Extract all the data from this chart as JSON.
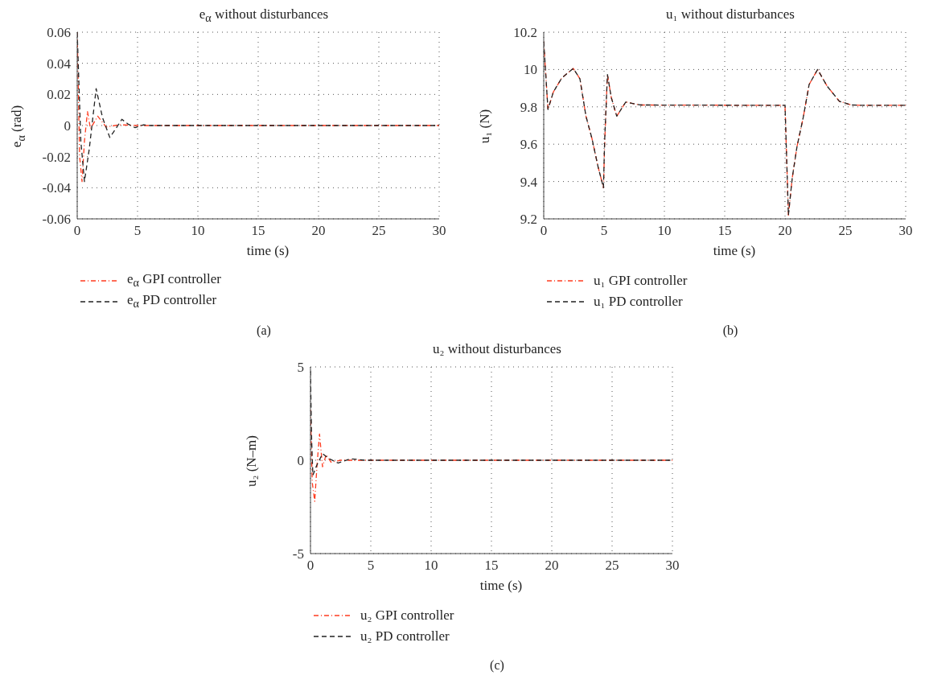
{
  "chart_data": [
    {
      "type": "line",
      "title": "e$_{α}$ without disturbances",
      "xlabel": "time (s)",
      "ylabel": "e$_{α}$ (rad)",
      "xlim": [
        0,
        30
      ],
      "xticks": [
        0,
        5,
        10,
        15,
        20,
        25,
        30
      ],
      "ylim": [
        -0.06,
        0.06
      ],
      "yticks": [
        -0.06,
        -0.04,
        -0.02,
        0,
        0.02,
        0.04,
        0.06
      ],
      "grid": true,
      "legend": "bottom",
      "annotations": [
        "(a)"
      ],
      "series": [
        {
          "name": "e$_{α}$ GPI controller",
          "color": "#ff3b1f",
          "line_style": "dashdot",
          "x": [
            0,
            0.2,
            0.4,
            0.6,
            0.85,
            1.1,
            1.7,
            2.4,
            3.5,
            5,
            30
          ],
          "values": [
            0.06,
            -0.02,
            -0.036,
            -0.01,
            0.009,
            -0.002,
            0.006,
            -0.001,
            0.0005,
            0,
            0
          ]
        },
        {
          "name": "e$_{α}$ PD controller",
          "color": "#222222",
          "line_style": "dashed",
          "x": [
            0,
            0.3,
            0.6,
            1.0,
            1.57,
            2.1,
            2.7,
            3.2,
            3.7,
            4.2,
            4.8,
            5.5,
            6,
            30
          ],
          "values": [
            0.06,
            -0.01,
            -0.036,
            -0.015,
            0.0237,
            0.005,
            -0.0077,
            -0.002,
            0.004,
            0.001,
            -0.0014,
            0.0005,
            0,
            0
          ]
        }
      ]
    },
    {
      "type": "line",
      "title": "u₁ without disturbances",
      "xlabel": "time (s)",
      "ylabel": "u₁ (N)",
      "xlim": [
        0,
        30
      ],
      "xticks": [
        0,
        5,
        10,
        15,
        20,
        25,
        30
      ],
      "ylim": [
        9.2,
        10.2
      ],
      "yticks": [
        9.2,
        9.4,
        9.6,
        9.8,
        10,
        10.2
      ],
      "grid": true,
      "legend": "bottom",
      "annotations": [
        "(b)"
      ],
      "series": [
        {
          "name": "u₁ GPI controller",
          "color": "#ff3b1f",
          "line_style": "dashdot",
          "x": [
            0,
            0.35,
            0.8,
            1.5,
            2.45,
            3.0,
            3.5,
            4.0,
            4.5,
            4.95,
            5.05,
            5.28,
            5.6,
            6.05,
            6.8,
            8,
            20,
            20.28,
            20.6,
            21,
            21.5,
            22,
            22.7,
            23.5,
            24.5,
            25.5,
            26.5,
            30
          ],
          "values": [
            10.15,
            9.786,
            9.88,
            9.955,
            10.006,
            9.95,
            9.75,
            9.63,
            9.48,
            9.367,
            9.6,
            9.973,
            9.85,
            9.75,
            9.826,
            9.81,
            9.808,
            9.22,
            9.42,
            9.59,
            9.74,
            9.92,
            10.0,
            9.91,
            9.83,
            9.81,
            9.808,
            9.808
          ]
        },
        {
          "name": "u₁ PD controller",
          "color": "#222222",
          "line_style": "dashed",
          "x": [
            0,
            0.35,
            0.8,
            1.5,
            2.45,
            3.0,
            3.5,
            4.0,
            4.5,
            4.95,
            5.05,
            5.28,
            5.6,
            6.05,
            6.8,
            8,
            20,
            20.28,
            20.6,
            21,
            21.5,
            22,
            22.7,
            23.5,
            24.5,
            25.5,
            26.5,
            30
          ],
          "values": [
            10.15,
            9.786,
            9.88,
            9.955,
            10.006,
            9.95,
            9.75,
            9.63,
            9.48,
            9.367,
            9.62,
            9.973,
            9.85,
            9.75,
            9.826,
            9.81,
            9.808,
            9.22,
            9.42,
            9.59,
            9.74,
            9.92,
            10.0,
            9.91,
            9.83,
            9.81,
            9.808,
            9.808
          ]
        }
      ]
    },
    {
      "type": "line",
      "title": "u₂ without disturbances",
      "xlabel": "time (s)",
      "ylabel": "u₂ (N–m)",
      "xlim": [
        0,
        30
      ],
      "xticks": [
        0,
        5,
        10,
        15,
        20,
        25,
        30
      ],
      "ylim": [
        -5,
        5
      ],
      "yticks": [
        -5,
        0,
        5
      ],
      "grid": true,
      "legend": "bottom",
      "annotations": [
        "(c)"
      ],
      "series": [
        {
          "name": "u₂ GPI controller",
          "color": "#ff3b1f",
          "line_style": "dashdot",
          "x": [
            0,
            0.15,
            0.35,
            0.55,
            0.75,
            1.0,
            1.3,
            1.7,
            2.5,
            30
          ],
          "values": [
            2.7,
            -1.2,
            -2.2,
            -0.2,
            1.4,
            -0.35,
            0.3,
            -0.1,
            0,
            0
          ]
        },
        {
          "name": "u₂ PD controller",
          "color": "#222222",
          "line_style": "dashed",
          "x": [
            0,
            0.1,
            0.2,
            0.5,
            1.0,
            1.5,
            2.3,
            3.3,
            4.5,
            30
          ],
          "values": [
            4.8,
            1.0,
            -0.8,
            -0.3,
            0.35,
            0.1,
            -0.15,
            0.08,
            0,
            0
          ]
        }
      ]
    }
  ]
}
